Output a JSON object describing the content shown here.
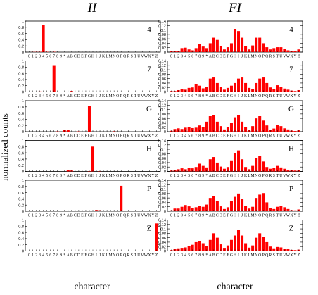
{
  "figure": {
    "column_titles": [
      "II",
      "FI"
    ],
    "xlabel": "character",
    "ylabel": "normalized counts",
    "bar_color": "#ff0000",
    "axis_color": "#000000"
  },
  "chart_data": [
    {
      "type": "bar",
      "panel": "II-4",
      "label": "4",
      "ylim": [
        0,
        1
      ],
      "yticks": [
        "0",
        "0.2",
        "0.4",
        "0.6",
        "0.8",
        "1"
      ],
      "categories": [
        "0",
        "1",
        "2",
        "3",
        "4",
        "5",
        "6",
        "7",
        "8",
        "9",
        "*",
        "A",
        "B",
        "C",
        "D",
        "E",
        "F",
        "G",
        "H",
        "I",
        "J",
        "K",
        "L",
        "M",
        "N",
        "O",
        "P",
        "Q",
        "R",
        "S",
        "T",
        "U",
        "V",
        "W",
        "X",
        "Y",
        "Z"
      ],
      "values": [
        0,
        0.005,
        0.008,
        0.01,
        0.87,
        0.01,
        0,
        0.01,
        0,
        0,
        0,
        0,
        0,
        0,
        0,
        0,
        0,
        0,
        0,
        0,
        0,
        0,
        0,
        0,
        0,
        0,
        0,
        0,
        0,
        0,
        0,
        0,
        0,
        0,
        0,
        0,
        0
      ]
    },
    {
      "type": "bar",
      "panel": "FI-4",
      "label": "4",
      "ylim": [
        0,
        0.14
      ],
      "yticks": [
        "0",
        "0.02",
        "0.04",
        "0.06",
        "0.08",
        "0.1",
        "0.12",
        "0.14"
      ],
      "categories": [
        "0",
        "1",
        "2",
        "3",
        "4",
        "5",
        "6",
        "7",
        "8",
        "9",
        "*",
        "A",
        "B",
        "C",
        "D",
        "E",
        "F",
        "G",
        "H",
        "I",
        "J",
        "K",
        "L",
        "M",
        "N",
        "O",
        "P",
        "Q",
        "R",
        "S",
        "T",
        "U",
        "V",
        "W",
        "X",
        "Y",
        "Z"
      ],
      "values": [
        0.004,
        0.006,
        0.006,
        0.018,
        0.02,
        0.012,
        0.008,
        0.018,
        0.035,
        0.025,
        0.018,
        0.04,
        0.065,
        0.055,
        0.028,
        0.012,
        0.022,
        0.04,
        0.105,
        0.095,
        0.065,
        0.028,
        0.012,
        0.03,
        0.065,
        0.065,
        0.04,
        0.022,
        0.012,
        0.018,
        0.022,
        0.022,
        0.015,
        0.008,
        0.006,
        0.006,
        0.012
      ]
    },
    {
      "type": "bar",
      "panel": "II-7",
      "label": "7",
      "ylim": [
        0,
        1
      ],
      "yticks": [
        "0",
        "0.2",
        "0.4",
        "0.6",
        "0.8",
        "1"
      ],
      "categories": [
        "0",
        "1",
        "2",
        "3",
        "4",
        "5",
        "6",
        "7",
        "8",
        "9",
        "*",
        "A",
        "B",
        "C",
        "D",
        "E",
        "F",
        "G",
        "H",
        "I",
        "J",
        "K",
        "L",
        "M",
        "N",
        "O",
        "P",
        "Q",
        "R",
        "S",
        "T",
        "U",
        "V",
        "W",
        "X",
        "Y",
        "Z"
      ],
      "values": [
        0,
        0.01,
        0.01,
        0.015,
        0.01,
        0,
        0,
        0.84,
        0,
        0.01,
        0,
        0,
        0.03,
        0,
        0,
        0,
        0,
        0,
        0,
        0,
        0,
        0,
        0,
        0,
        0,
        0,
        0,
        0,
        0,
        0,
        0,
        0,
        0,
        0,
        0,
        0,
        0
      ]
    },
    {
      "type": "bar",
      "panel": "FI-7",
      "label": "7",
      "ylim": [
        0,
        0.14
      ],
      "yticks": [
        "0",
        "0.02",
        "0.04",
        "0.06",
        "0.08",
        "0.1",
        "0.12",
        "0.14"
      ],
      "categories": [
        "0",
        "1",
        "2",
        "3",
        "4",
        "5",
        "6",
        "7",
        "8",
        "9",
        "*",
        "A",
        "B",
        "C",
        "D",
        "E",
        "F",
        "G",
        "H",
        "I",
        "J",
        "K",
        "L",
        "M",
        "N",
        "O",
        "P",
        "Q",
        "R",
        "S",
        "T",
        "U",
        "V",
        "W",
        "X",
        "Y",
        "Z"
      ],
      "values": [
        0.004,
        0.004,
        0.008,
        0.012,
        0.01,
        0.018,
        0.02,
        0.035,
        0.028,
        0.016,
        0.022,
        0.06,
        0.065,
        0.04,
        0.022,
        0.01,
        0.018,
        0.028,
        0.04,
        0.06,
        0.065,
        0.04,
        0.018,
        0.012,
        0.04,
        0.06,
        0.065,
        0.04,
        0.02,
        0.012,
        0.03,
        0.022,
        0.015,
        0.01,
        0.006,
        0.004,
        0.008
      ]
    },
    {
      "type": "bar",
      "panel": "II-G",
      "label": "G",
      "ylim": [
        0,
        1
      ],
      "yticks": [
        "0",
        "0.2",
        "0.4",
        "0.6",
        "0.8",
        "1"
      ],
      "categories": [
        "0",
        "1",
        "2",
        "3",
        "4",
        "5",
        "6",
        "7",
        "8",
        "9",
        "*",
        "A",
        "B",
        "C",
        "D",
        "E",
        "F",
        "G",
        "H",
        "I",
        "J",
        "K",
        "L",
        "M",
        "N",
        "O",
        "P",
        "Q",
        "R",
        "S",
        "T",
        "U",
        "V",
        "W",
        "X",
        "Y",
        "Z"
      ],
      "values": [
        0,
        0,
        0,
        0,
        0,
        0,
        0,
        0,
        0.01,
        0,
        0.05,
        0.06,
        0,
        0,
        0.01,
        0,
        0,
        0.82,
        0,
        0,
        0,
        0,
        0,
        0,
        0.015,
        0,
        0,
        0,
        0,
        0,
        0,
        0,
        0,
        0,
        0,
        0,
        0
      ]
    },
    {
      "type": "bar",
      "panel": "FI-G",
      "label": "G",
      "ylim": [
        0,
        0.14
      ],
      "yticks": [
        "0",
        "0.02",
        "0.04",
        "0.06",
        "0.08",
        "0.1",
        "0.12",
        "0.14"
      ],
      "categories": [
        "0",
        "1",
        "2",
        "3",
        "4",
        "5",
        "6",
        "7",
        "8",
        "9",
        "*",
        "A",
        "B",
        "C",
        "D",
        "E",
        "F",
        "G",
        "H",
        "I",
        "J",
        "K",
        "L",
        "M",
        "N",
        "O",
        "P",
        "Q",
        "R",
        "S",
        "T",
        "U",
        "V",
        "W",
        "X",
        "Y",
        "Z"
      ],
      "values": [
        0.004,
        0.012,
        0.015,
        0.012,
        0.018,
        0.02,
        0.016,
        0.018,
        0.028,
        0.022,
        0.045,
        0.07,
        0.075,
        0.045,
        0.025,
        0.01,
        0.02,
        0.04,
        0.065,
        0.075,
        0.045,
        0.02,
        0.008,
        0.025,
        0.06,
        0.07,
        0.05,
        0.028,
        0.008,
        0.014,
        0.03,
        0.025,
        0.015,
        0.01,
        0.005,
        0.003,
        0.006
      ]
    },
    {
      "type": "bar",
      "panel": "II-H",
      "label": "H",
      "ylim": [
        0,
        1
      ],
      "yticks": [
        "0",
        "0.2",
        "0.4",
        "0.6",
        "0.8",
        "1"
      ],
      "categories": [
        "0",
        "1",
        "2",
        "3",
        "4",
        "5",
        "6",
        "7",
        "8",
        "9",
        "*",
        "A",
        "B",
        "C",
        "D",
        "E",
        "F",
        "G",
        "H",
        "I",
        "J",
        "K",
        "L",
        "M",
        "N",
        "O",
        "P",
        "Q",
        "R",
        "S",
        "T",
        "U",
        "V",
        "W",
        "X",
        "Y",
        "Z"
      ],
      "values": [
        0,
        0,
        0,
        0,
        0,
        0,
        0,
        0,
        0,
        0,
        0,
        0.04,
        0.03,
        0,
        0,
        0,
        0,
        0.01,
        0.8,
        0,
        0.01,
        0,
        0,
        0,
        0,
        0,
        0,
        0,
        0,
        0,
        0,
        0,
        0,
        0,
        0,
        0,
        0
      ]
    },
    {
      "type": "bar",
      "panel": "FI-H",
      "label": "H",
      "ylim": [
        0,
        0.14
      ],
      "yticks": [
        "0",
        "0.02",
        "0.04",
        "0.06",
        "0.08",
        "0.1",
        "0.12",
        "0.14"
      ],
      "categories": [
        "0",
        "1",
        "2",
        "3",
        "4",
        "5",
        "6",
        "7",
        "8",
        "9",
        "*",
        "A",
        "B",
        "C",
        "D",
        "E",
        "F",
        "G",
        "H",
        "I",
        "J",
        "K",
        "L",
        "M",
        "N",
        "O",
        "P",
        "Q",
        "R",
        "S",
        "T",
        "U",
        "V",
        "W",
        "X",
        "Y",
        "Z"
      ],
      "values": [
        0.004,
        0.008,
        0.01,
        0.014,
        0.01,
        0.016,
        0.014,
        0.02,
        0.035,
        0.025,
        0.018,
        0.055,
        0.065,
        0.04,
        0.022,
        0.012,
        0.02,
        0.05,
        0.082,
        0.095,
        0.055,
        0.02,
        0.01,
        0.025,
        0.06,
        0.07,
        0.045,
        0.02,
        0.012,
        0.016,
        0.025,
        0.018,
        0.012,
        0.008,
        0.005,
        0.004,
        0.006
      ]
    },
    {
      "type": "bar",
      "panel": "II-P",
      "label": "P",
      "ylim": [
        0,
        1
      ],
      "yticks": [
        "0",
        "0.2",
        "0.4",
        "0.6",
        "0.8",
        "1"
      ],
      "categories": [
        "0",
        "1",
        "2",
        "3",
        "4",
        "5",
        "6",
        "7",
        "8",
        "9",
        "*",
        "A",
        "B",
        "C",
        "D",
        "E",
        "F",
        "G",
        "H",
        "I",
        "J",
        "K",
        "L",
        "M",
        "N",
        "O",
        "P",
        "Q",
        "R",
        "S",
        "T",
        "U",
        "V",
        "W",
        "X",
        "Y",
        "Z"
      ],
      "values": [
        0,
        0,
        0,
        0,
        0,
        0,
        0,
        0,
        0,
        0,
        0,
        0,
        0,
        0,
        0,
        0,
        0,
        0,
        0,
        0.04,
        0.03,
        0,
        0,
        0,
        0,
        0.01,
        0.82,
        0.02,
        0,
        0,
        0,
        0,
        0,
        0,
        0,
        0,
        0.01
      ]
    },
    {
      "type": "bar",
      "panel": "FI-P",
      "label": "P",
      "ylim": [
        0,
        0.14
      ],
      "yticks": [
        "0",
        "0.02",
        "0.04",
        "0.06",
        "0.08",
        "0.1",
        "0.12",
        "0.14"
      ],
      "categories": [
        "0",
        "1",
        "2",
        "3",
        "4",
        "5",
        "6",
        "7",
        "8",
        "9",
        "*",
        "A",
        "B",
        "C",
        "D",
        "E",
        "F",
        "G",
        "H",
        "I",
        "J",
        "K",
        "L",
        "M",
        "N",
        "O",
        "P",
        "Q",
        "R",
        "S",
        "T",
        "U",
        "V",
        "W",
        "X",
        "Y",
        "Z"
      ],
      "values": [
        0.004,
        0.012,
        0.012,
        0.02,
        0.028,
        0.022,
        0.015,
        0.018,
        0.025,
        0.02,
        0.03,
        0.06,
        0.07,
        0.045,
        0.022,
        0.01,
        0.018,
        0.045,
        0.065,
        0.08,
        0.055,
        0.025,
        0.012,
        0.02,
        0.06,
        0.075,
        0.082,
        0.04,
        0.015,
        0.01,
        0.02,
        0.025,
        0.018,
        0.01,
        0.005,
        0.004,
        0.008
      ]
    },
    {
      "type": "bar",
      "panel": "II-Z",
      "label": "Z",
      "ylim": [
        0,
        1
      ],
      "yticks": [
        "0",
        "0.2",
        "0.4",
        "0.6",
        "0.8",
        "1"
      ],
      "categories": [
        "0",
        "1",
        "2",
        "3",
        "4",
        "5",
        "6",
        "7",
        "8",
        "9",
        "*",
        "A",
        "B",
        "C",
        "D",
        "E",
        "F",
        "G",
        "H",
        "I",
        "J",
        "K",
        "L",
        "M",
        "N",
        "O",
        "P",
        "Q",
        "R",
        "S",
        "T",
        "U",
        "V",
        "W",
        "X",
        "Y",
        "Z"
      ],
      "values": [
        0,
        0,
        0,
        0,
        0,
        0,
        0,
        0,
        0,
        0,
        0,
        0,
        0,
        0,
        0,
        0,
        0,
        0,
        0,
        0,
        0,
        0,
        0,
        0,
        0,
        0,
        0,
        0.005,
        0,
        0,
        0,
        0,
        0,
        0,
        0,
        0.01,
        0.89
      ]
    },
    {
      "type": "bar",
      "panel": "FI-Z",
      "label": "Z",
      "ylim": [
        0,
        0.14
      ],
      "yticks": [
        "0",
        "0.02",
        "0.04",
        "0.06",
        "0.08",
        "0.1",
        "0.12",
        "0.14"
      ],
      "categories": [
        "0",
        "1",
        "2",
        "3",
        "4",
        "5",
        "6",
        "7",
        "8",
        "9",
        "*",
        "A",
        "B",
        "C",
        "D",
        "E",
        "F",
        "G",
        "H",
        "I",
        "J",
        "K",
        "L",
        "M",
        "N",
        "O",
        "P",
        "Q",
        "R",
        "S",
        "T",
        "U",
        "V",
        "W",
        "X",
        "Y",
        "Z"
      ],
      "values": [
        0.004,
        0.008,
        0.012,
        0.014,
        0.016,
        0.022,
        0.028,
        0.04,
        0.045,
        0.035,
        0.022,
        0.05,
        0.08,
        0.06,
        0.03,
        0.014,
        0.025,
        0.05,
        0.07,
        0.095,
        0.07,
        0.035,
        0.015,
        0.025,
        0.06,
        0.08,
        0.065,
        0.04,
        0.02,
        0.012,
        0.018,
        0.016,
        0.01,
        0.008,
        0.005,
        0.004,
        0.006
      ]
    }
  ]
}
